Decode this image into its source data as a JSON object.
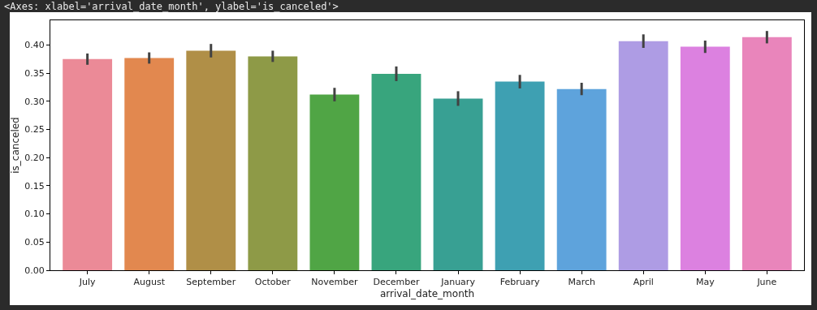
{
  "chart_data": {
    "type": "bar",
    "xlabel": "arrival_date_month",
    "ylabel": "is_canceled",
    "annotations": [
      "<Axes: xlabel='arrival_date_month', ylabel='is_canceled'>"
    ],
    "categories": [
      "July",
      "August",
      "September",
      "October",
      "November",
      "December",
      "January",
      "February",
      "March",
      "April",
      "May",
      "June"
    ],
    "values": [
      0.375,
      0.377,
      0.39,
      0.38,
      0.312,
      0.349,
      0.305,
      0.335,
      0.322,
      0.407,
      0.397,
      0.414
    ],
    "errors": [
      0.01,
      0.01,
      0.012,
      0.01,
      0.012,
      0.013,
      0.013,
      0.012,
      0.011,
      0.012,
      0.011,
      0.011
    ],
    "colors": [
      "#eb8a97",
      "#e2884f",
      "#b08f47",
      "#8e9a47",
      "#50a545",
      "#38a57d",
      "#38a093",
      "#3ea0b2",
      "#5ea3dc",
      "#ae9ce4",
      "#dc81e0",
      "#e985bb"
    ],
    "ylim": [
      0,
      0.444
    ],
    "yticks": [
      {
        "value": 0,
        "label": "0.00"
      },
      {
        "value": 0.05,
        "label": "0.05"
      },
      {
        "value": 0.1,
        "label": "0.10"
      },
      {
        "value": 0.15,
        "label": "0.15"
      },
      {
        "value": 0.2,
        "label": "0.20"
      },
      {
        "value": 0.25,
        "label": "0.25"
      },
      {
        "value": 0.3,
        "label": "0.30"
      },
      {
        "value": 0.35,
        "label": "0.35"
      },
      {
        "value": 0.4,
        "label": "0.40"
      }
    ],
    "grid": false
  }
}
